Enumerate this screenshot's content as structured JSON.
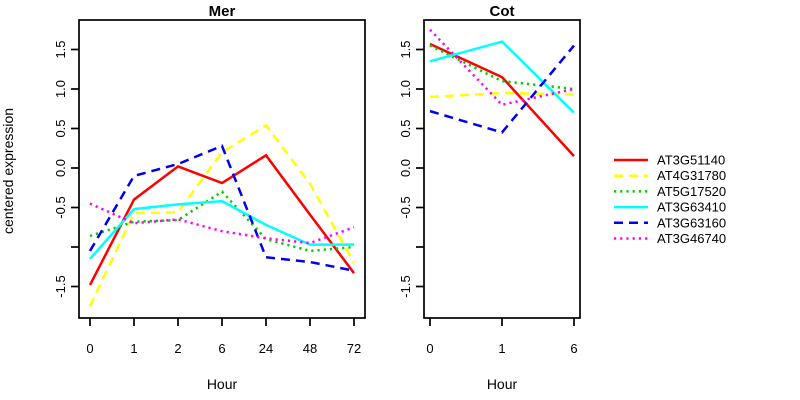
{
  "figure": {
    "ylabel": "centered expression",
    "xlabel": "Hour",
    "y_tick_values": [
      -1.5,
      -1.0,
      -0.5,
      0.0,
      0.5,
      1.0,
      1.5
    ],
    "y_tick_labels": [
      "-1.5",
      "",
      "-0.5",
      "0.0",
      "0.5",
      "1.0",
      "1.5"
    ]
  },
  "legend": {
    "position": "right",
    "items": [
      {
        "label": "AT3G51140",
        "color": "#FF0000",
        "style": "solid"
      },
      {
        "label": "AT4G31780",
        "color": "#FFFF00",
        "style": "dashed"
      },
      {
        "label": "AT5G17520",
        "color": "#00CD00",
        "style": "dotted"
      },
      {
        "label": "AT3G63410",
        "color": "#00FFFF",
        "style": "solid"
      },
      {
        "label": "AT3G63160",
        "color": "#0000EE",
        "style": "dashed"
      },
      {
        "label": "AT3G46740",
        "color": "#FF00FF",
        "style": "dotted"
      }
    ]
  },
  "chart_data": [
    {
      "type": "line",
      "title": "Mer",
      "xlabel": "Hour",
      "ylabel": "centered expression",
      "categories": [
        "0",
        "1",
        "2",
        "6",
        "24",
        "48",
        "72"
      ],
      "ylim": [
        -1.9,
        1.87
      ],
      "grid": false,
      "series": [
        {
          "name": "AT3G51140",
          "color": "#FF0000",
          "style": "solid",
          "values": [
            -1.48,
            -0.4,
            0.02,
            -0.19,
            0.16,
            -0.59,
            -1.33
          ]
        },
        {
          "name": "AT4G31780",
          "color": "#FFFF00",
          "style": "dashed",
          "values": [
            -1.75,
            -0.57,
            -0.56,
            0.2,
            0.54,
            -0.2,
            -1.2
          ]
        },
        {
          "name": "AT5G17520",
          "color": "#00CD00",
          "style": "dotted",
          "values": [
            -0.86,
            -0.68,
            -0.66,
            -0.3,
            -0.9,
            -1.05,
            -1.0
          ]
        },
        {
          "name": "AT3G63410",
          "color": "#00FFFF",
          "style": "solid",
          "values": [
            -1.15,
            -0.52,
            -0.46,
            -0.42,
            -0.72,
            -0.97,
            -0.97
          ]
        },
        {
          "name": "AT3G63160",
          "color": "#0000EE",
          "style": "dashed",
          "values": [
            -1.05,
            -0.1,
            0.05,
            0.28,
            -1.13,
            -1.19,
            -1.3
          ]
        },
        {
          "name": "AT3G46740",
          "color": "#FF00FF",
          "style": "dotted",
          "values": [
            -0.45,
            -0.7,
            -0.65,
            -0.8,
            -0.89,
            -0.95,
            -0.75
          ]
        }
      ]
    },
    {
      "type": "line",
      "title": "Cot",
      "xlabel": "Hour",
      "ylabel": "",
      "categories": [
        "0",
        "1",
        "6"
      ],
      "ylim": [
        -1.9,
        1.87
      ],
      "grid": false,
      "series": [
        {
          "name": "AT3G51140",
          "color": "#FF0000",
          "style": "solid",
          "values": [
            1.57,
            1.15,
            0.15
          ]
        },
        {
          "name": "AT4G31780",
          "color": "#FFFF00",
          "style": "dashed",
          "values": [
            0.9,
            0.95,
            0.93
          ]
        },
        {
          "name": "AT5G17520",
          "color": "#00CD00",
          "style": "dotted",
          "values": [
            1.55,
            1.1,
            1.0
          ]
        },
        {
          "name": "AT3G63410",
          "color": "#00FFFF",
          "style": "solid",
          "values": [
            1.35,
            1.6,
            0.7
          ]
        },
        {
          "name": "AT3G63160",
          "color": "#0000EE",
          "style": "dashed",
          "values": [
            0.72,
            0.45,
            1.55
          ]
        },
        {
          "name": "AT3G46740",
          "color": "#FF00FF",
          "style": "dotted",
          "values": [
            1.75,
            0.8,
            1.0
          ]
        }
      ]
    }
  ]
}
